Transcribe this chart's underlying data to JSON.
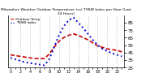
{
  "title": "Milwaukee Weather Outdoor Temperature (vs) THSW Index per Hour (Last 24 Hours)",
  "background_color": "#ffffff",
  "grid_color": "#aaaaaa",
  "x_hours": [
    0,
    1,
    2,
    3,
    4,
    5,
    6,
    7,
    8,
    9,
    10,
    11,
    12,
    13,
    14,
    15,
    16,
    17,
    18,
    19,
    20,
    21,
    22,
    23
  ],
  "temp_outdoor": [
    42,
    41,
    40,
    39,
    38,
    37,
    37,
    37,
    43,
    52,
    60,
    65,
    68,
    70,
    68,
    65,
    62,
    58,
    54,
    52,
    50,
    49,
    48,
    46
  ],
  "thsw_index": [
    38,
    36,
    34,
    32,
    31,
    30,
    29,
    28,
    36,
    52,
    68,
    80,
    88,
    92,
    85,
    78,
    70,
    62,
    55,
    50,
    47,
    44,
    42,
    40
  ],
  "outdoor_color": "#cc0000",
  "thsw_color": "#0000cc",
  "outdoor_lw": 1.2,
  "thsw_lw": 1.4,
  "ylim": [
    25,
    95
  ],
  "yticks": [
    25,
    35,
    45,
    55,
    65,
    75,
    85
  ],
  "ylabel_fontsize": 4,
  "xlabel_fontsize": 3.5,
  "title_fontsize": 3.2,
  "legend_fontsize": 3.0
}
